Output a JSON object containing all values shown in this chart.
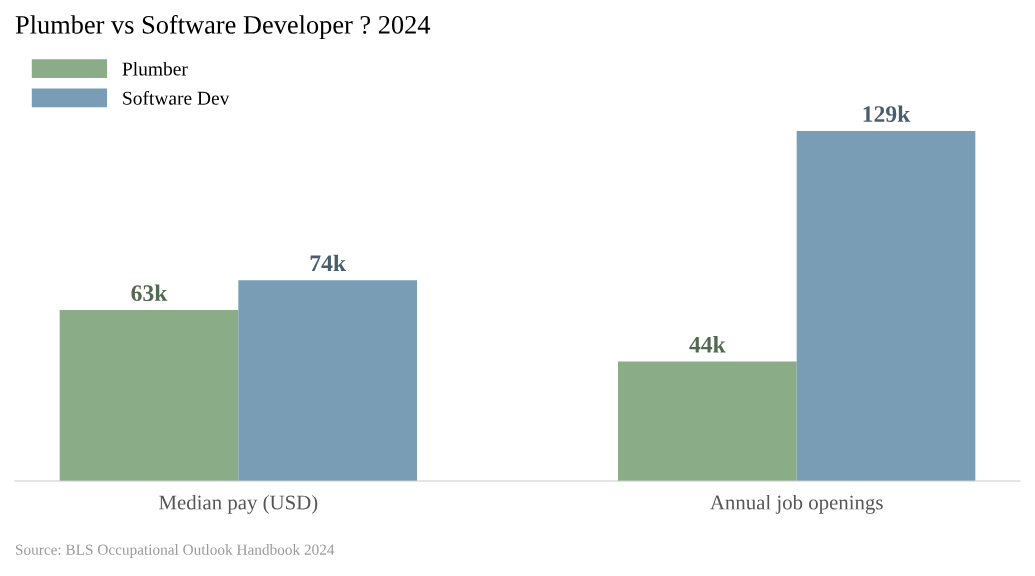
{
  "chart_data": {
    "type": "bar",
    "title": "Plumber vs Software Developer ? 2024",
    "categories": [
      "Median pay (USD)",
      "Annual job openings"
    ],
    "series": [
      {
        "name": "Plumber",
        "color": "#8aad87",
        "values": [
          63000,
          44000
        ],
        "value_labels": [
          "63k",
          "44k"
        ]
      },
      {
        "name": "Software Dev",
        "color": "#7a9db6",
        "values": [
          74000,
          129000
        ],
        "value_labels": [
          "74k",
          "129k"
        ]
      }
    ],
    "annotations": [
      "Source: BLS Occupational Outlook Handbook 2024"
    ],
    "legend": "top left",
    "grid": false,
    "tick_labels": "x"
  }
}
